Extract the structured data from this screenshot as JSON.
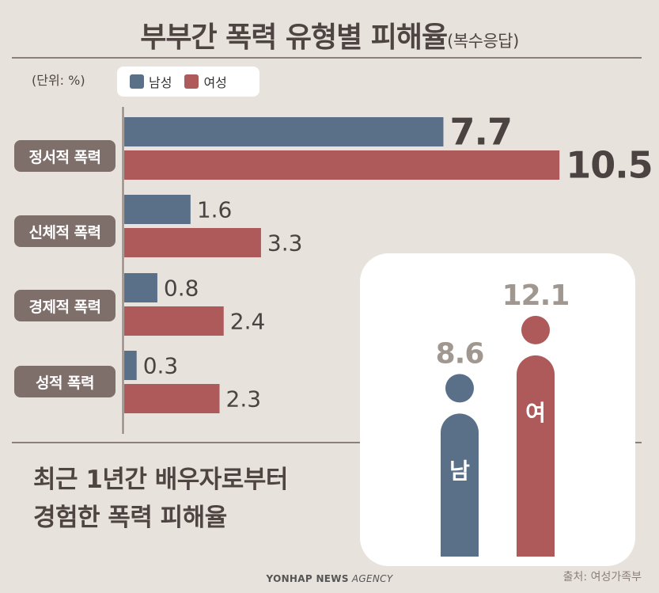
{
  "title": "부부간 폭력 유형별 피해율",
  "title_sub": "(복수응답)",
  "unit": "(단위: %)",
  "colors": {
    "male": "#5a7089",
    "female": "#ae5a5b",
    "panel_male_value": "#a09890",
    "panel_female_value": "#a09890"
  },
  "chart_data": [
    {
      "type": "bar",
      "orientation": "horizontal",
      "title": "부부간 폭력 유형별 피해율(복수응답)",
      "unit": "%",
      "categories": [
        "정서적 폭력",
        "신체적 폭력",
        "경제적 폭력",
        "성적 폭력"
      ],
      "series": [
        {
          "name": "남성",
          "values": [
            7.7,
            1.6,
            0.8,
            0.3
          ]
        },
        {
          "name": "여성",
          "values": [
            10.5,
            3.3,
            2.4,
            2.3
          ]
        }
      ],
      "xlim": [
        0,
        12
      ]
    },
    {
      "type": "bar",
      "title": "최근 1년간 배우자로부터 경험한 폭력 피해율",
      "categories": [
        "남",
        "여"
      ],
      "values": [
        8.6,
        12.1
      ],
      "unit": "%"
    }
  ],
  "footer_title_lines": [
    "최근 1년간 배우자로부터",
    "경험한 폭력 피해율"
  ],
  "source": "출처: 여성가족부",
  "agency": {
    "bold": "YONHAP NEWS",
    "light": " AGENCY"
  }
}
